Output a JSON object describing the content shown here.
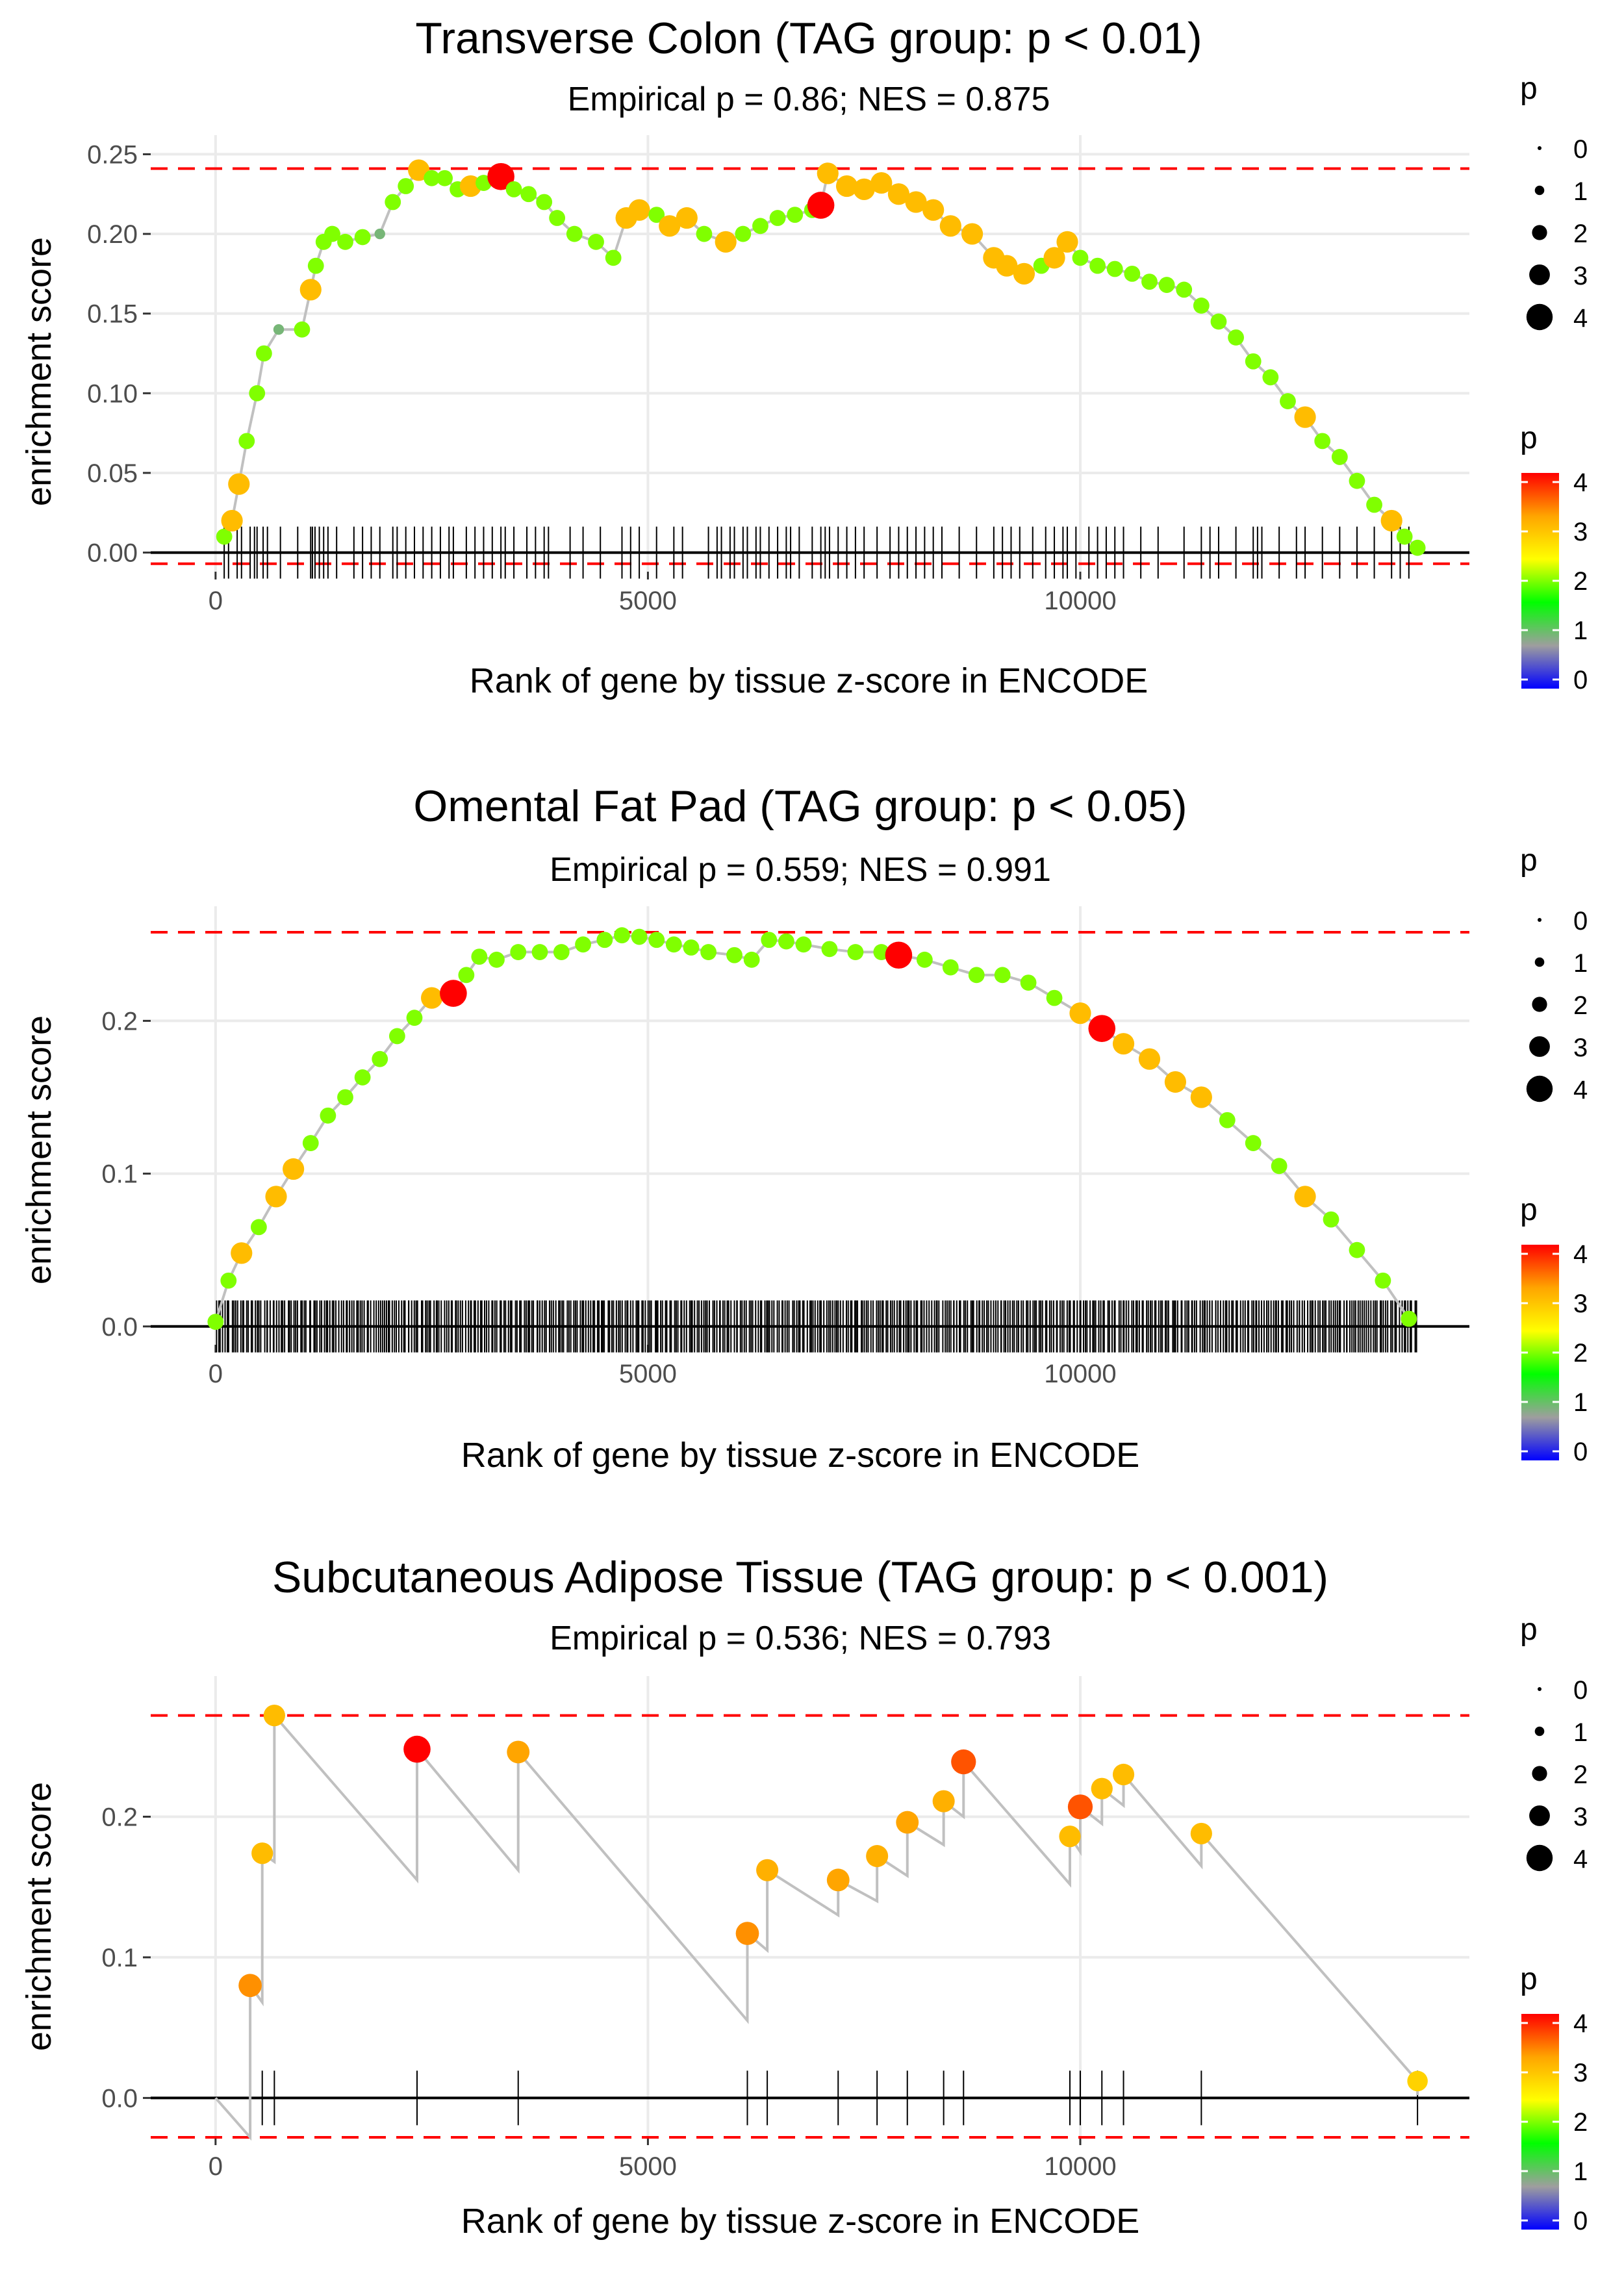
{
  "colors": {
    "grid": "#ebebeb",
    "line": "#c0c0c0",
    "axis": "#000000",
    "ref": "#ff0000",
    "tick_text": "#4d4d4d",
    "scale": [
      "#0000ff",
      "#9e9e9e",
      "#00ff00",
      "#ffff00",
      "#ffa500",
      "#ff0000"
    ]
  },
  "chart_data": [
    {
      "type": "line",
      "title": "Transverse Colon (TAG group: p < 0.01)",
      "subtitle": "Empirical p = 0.86; NES = 0.875",
      "xlabel": "Rank of gene by tissue z-score in ENCODE",
      "ylabel": "enrichment score",
      "xlim": [
        -750,
        14500
      ],
      "ylim": [
        -0.012,
        0.262
      ],
      "xticks": [
        0,
        5000,
        10000
      ],
      "xtick_labels": [
        "0",
        "5000",
        "10000"
      ],
      "yticks": [
        0,
        0.05,
        0.1,
        0.15,
        0.2,
        0.25
      ],
      "ytick_labels": [
        "0.00",
        "0.05",
        "0.10",
        "0.15",
        "0.20",
        "0.25"
      ],
      "ref_lines": [
        0.241,
        -0.007
      ],
      "grid": true,
      "legend_position": "right",
      "series": [
        {
          "name": "running enrichment score",
          "x": [
            100,
            190,
            270,
            360,
            480,
            560,
            730,
            1000,
            1100,
            1160,
            1250,
            1350,
            1500,
            1700,
            1900,
            2050,
            2200,
            2350,
            2500,
            2650,
            2800,
            2950,
            3100,
            3300,
            3450,
            3620,
            3800,
            3950,
            4150,
            4400,
            4600,
            4750,
            4900,
            5100,
            5250,
            5450,
            5650,
            5900,
            6100,
            6300,
            6500,
            6700,
            6900,
            7000,
            7080,
            7300,
            7500,
            7700,
            7900,
            8100,
            8300,
            8500,
            8750,
            9000,
            9150,
            9350,
            9550,
            9700,
            9850,
            10000,
            10200,
            10400,
            10600,
            10800,
            11000,
            11200,
            11400,
            11600,
            11800,
            12000,
            12200,
            12400,
            12600,
            12800,
            13000,
            13200,
            13400,
            13600,
            13750,
            13900
          ],
          "y": [
            0.01,
            0.02,
            0.043,
            0.07,
            0.1,
            0.125,
            0.14,
            0.14,
            0.165,
            0.18,
            0.195,
            0.2,
            0.195,
            0.198,
            0.2,
            0.22,
            0.23,
            0.24,
            0.235,
            0.235,
            0.228,
            0.23,
            0.232,
            0.236,
            0.228,
            0.225,
            0.22,
            0.21,
            0.2,
            0.195,
            0.185,
            0.21,
            0.215,
            0.212,
            0.205,
            0.21,
            0.2,
            0.195,
            0.2,
            0.205,
            0.21,
            0.212,
            0.215,
            0.218,
            0.238,
            0.23,
            0.228,
            0.232,
            0.225,
            0.22,
            0.215,
            0.205,
            0.2,
            0.185,
            0.18,
            0.175,
            0.18,
            0.185,
            0.195,
            0.185,
            0.18,
            0.178,
            0.175,
            0.17,
            0.168,
            0.165,
            0.155,
            0.145,
            0.135,
            0.12,
            0.11,
            0.095,
            0.085,
            0.07,
            0.06,
            0.045,
            0.03,
            0.02,
            0.01,
            0.003
          ],
          "p": [
            2,
            3,
            3,
            2,
            2,
            2,
            1,
            2,
            3,
            2,
            2,
            2,
            2,
            2,
            1,
            2,
            2,
            3,
            2,
            2,
            2,
            3,
            2,
            4,
            2,
            2,
            2,
            2,
            2,
            2,
            2,
            3,
            3,
            2,
            3,
            3,
            2,
            3,
            2,
            2,
            2,
            2,
            2,
            4,
            3,
            3,
            3,
            3,
            3,
            3,
            3,
            3,
            3,
            3,
            3,
            3,
            2,
            3,
            3,
            2,
            2,
            2,
            2,
            2,
            2,
            2,
            2,
            2,
            2,
            2,
            2,
            2,
            3,
            2,
            2,
            2,
            2,
            3,
            2,
            2
          ]
        }
      ],
      "gene_ranks": [
        100,
        150,
        250,
        300,
        400,
        450,
        480,
        550,
        600,
        750,
        950,
        1100,
        1120,
        1150,
        1200,
        1250,
        1300,
        1400,
        1600,
        1700,
        1800,
        1900,
        2050,
        2100,
        2200,
        2300,
        2400,
        2500,
        2600,
        2700,
        2750,
        2900,
        3000,
        3100,
        3200,
        3300,
        3350,
        3450,
        3600,
        3700,
        3800,
        3850,
        4100,
        4250,
        4450,
        4700,
        4800,
        4900,
        5100,
        5300,
        5400,
        5700,
        5800,
        5850,
        5950,
        6000,
        6100,
        6150,
        6250,
        6300,
        6400,
        6500,
        6600,
        6650,
        6750,
        6900,
        7000,
        7050,
        7100,
        7200,
        7300,
        7400,
        7500,
        7650,
        7800,
        7900,
        8000,
        8100,
        8200,
        8300,
        8400,
        8600,
        8800,
        9000,
        9100,
        9200,
        9300,
        9450,
        9600,
        9700,
        9800,
        9850,
        9950,
        10100,
        10200,
        10300,
        10400,
        10500,
        10700,
        10900,
        11200,
        11400,
        11500,
        11600,
        11800,
        12000,
        12050,
        12100,
        12300,
        12500,
        12600,
        12800,
        13000,
        13200,
        13400,
        13600,
        13700,
        13800
      ]
    },
    {
      "type": "line",
      "title": "Omental Fat Pad (TAG group: p < 0.05)",
      "subtitle": "Empirical p = 0.559; NES = 0.991",
      "xlabel": "Rank of gene by tissue z-score in ENCODE",
      "ylabel": "enrichment score",
      "xlim": [
        -750,
        14500
      ],
      "ylim": [
        -0.012,
        0.275
      ],
      "xticks": [
        0,
        5000,
        10000
      ],
      "xtick_labels": [
        "0",
        "5000",
        "10000"
      ],
      "yticks": [
        0,
        0.1,
        0.2
      ],
      "ytick_labels": [
        "0.0",
        "0.1",
        "0.2"
      ],
      "ref_lines": [
        0.258
      ],
      "grid": true,
      "legend_position": "right",
      "series": [
        {
          "name": "running enrichment score",
          "x": [
            0,
            150,
            300,
            500,
            700,
            900,
            1100,
            1300,
            1500,
            1700,
            1900,
            2100,
            2300,
            2500,
            2750,
            2900,
            3050,
            3250,
            3500,
            3750,
            4000,
            4250,
            4500,
            4700,
            4900,
            5100,
            5300,
            5500,
            5700,
            6000,
            6200,
            6400,
            6600,
            6800,
            7100,
            7400,
            7700,
            7900,
            8200,
            8500,
            8800,
            9100,
            9400,
            9700,
            10000,
            10250,
            10500,
            10800,
            11100,
            11400,
            11700,
            12000,
            12300,
            12600,
            12900,
            13200,
            13500,
            13800
          ],
          "y": [
            0.003,
            0.03,
            0.048,
            0.065,
            0.085,
            0.103,
            0.12,
            0.138,
            0.15,
            0.163,
            0.175,
            0.19,
            0.202,
            0.215,
            0.218,
            0.23,
            0.242,
            0.24,
            0.245,
            0.245,
            0.245,
            0.25,
            0.253,
            0.256,
            0.255,
            0.253,
            0.25,
            0.248,
            0.245,
            0.243,
            0.24,
            0.253,
            0.252,
            0.25,
            0.247,
            0.245,
            0.245,
            0.243,
            0.24,
            0.235,
            0.23,
            0.23,
            0.225,
            0.215,
            0.205,
            0.195,
            0.185,
            0.175,
            0.16,
            0.15,
            0.135,
            0.12,
            0.105,
            0.085,
            0.07,
            0.05,
            0.03,
            0.005
          ],
          "p": [
            2,
            2,
            3,
            2,
            3,
            3,
            2,
            2,
            2,
            2,
            2,
            2,
            2,
            3,
            4,
            2,
            2,
            2,
            2,
            2,
            2,
            2,
            2,
            2,
            2,
            2,
            2,
            2,
            2,
            2,
            2,
            2,
            2,
            2,
            2,
            2,
            2,
            4,
            2,
            2,
            2,
            2,
            2,
            2,
            3,
            4,
            3,
            3,
            3,
            3,
            2,
            2,
            2,
            3,
            2,
            2,
            2,
            2
          ]
        }
      ],
      "gene_ranks_count": 560,
      "gene_ranks_range": [
        0,
        13900
      ]
    },
    {
      "type": "line",
      "title": "Subcutaneous Adipose Tissue (TAG group: p < 0.001)",
      "subtitle": "Empirical p = 0.536; NES = 0.793",
      "xlabel": "Rank of gene by tissue z-score in ENCODE",
      "ylabel": "enrichment score",
      "xlim": [
        -750,
        14500
      ],
      "ylim": [
        -0.028,
        0.3
      ],
      "xticks": [
        0,
        5000,
        10000
      ],
      "xtick_labels": [
        "0",
        "5000",
        "10000"
      ],
      "yticks": [
        0,
        0.1,
        0.2
      ],
      "ytick_labels": [
        "0.0",
        "0.1",
        "0.2"
      ],
      "ref_lines": [
        0.272,
        -0.028
      ],
      "grid": true,
      "legend_position": "right",
      "series": [
        {
          "name": "running enrichment score",
          "x": [
            0,
            400,
            400,
            540,
            540,
            680,
            680,
            2330,
            2330,
            3500,
            3500,
            6150,
            6150,
            6380,
            6380,
            7200,
            7200,
            7650,
            7650,
            8000,
            8000,
            8420,
            8420,
            8650,
            8650,
            9880,
            9880,
            10000,
            10000,
            10250,
            10250,
            10500,
            10500,
            11400,
            11400,
            13900,
            13900
          ],
          "y": [
            0,
            -0.028,
            0.08,
            0.068,
            0.174,
            0.168,
            0.272,
            0.155,
            0.248,
            0.162,
            0.246,
            0.055,
            0.117,
            0.105,
            0.162,
            0.13,
            0.155,
            0.14,
            0.172,
            0.158,
            0.196,
            0.18,
            0.211,
            0.2,
            0.239,
            0.152,
            0.186,
            0.175,
            0.207,
            0.195,
            0.22,
            0.208,
            0.23,
            0.165,
            0.188,
            0.012,
            0.002
          ],
          "marker_x": [
            400,
            540,
            680,
            2330,
            3500,
            6150,
            6380,
            7200,
            7650,
            8000,
            8420,
            8650,
            9880,
            10000,
            10250,
            10500,
            11400,
            13900
          ],
          "marker_y": [
            0.08,
            0.174,
            0.272,
            0.248,
            0.246,
            0.117,
            0.162,
            0.155,
            0.172,
            0.196,
            0.211,
            0.239,
            0.186,
            0.207,
            0.22,
            0.23,
            0.188,
            0.012
          ],
          "p": [
            3.3,
            3.0,
            3.0,
            4.0,
            3.2,
            3.3,
            3.1,
            3.2,
            3.1,
            3.2,
            3.1,
            3.6,
            3.0,
            3.6,
            3.0,
            3.0,
            3.0,
            2.8
          ]
        }
      ],
      "gene_ranks": [
        400,
        540,
        680,
        2330,
        3500,
        6150,
        6380,
        7200,
        7650,
        8000,
        8420,
        8650,
        9880,
        10000,
        10250,
        10500,
        11400,
        13900
      ]
    }
  ],
  "legends": [
    {
      "size_title": "p",
      "size_values": [
        "0",
        "1",
        "2",
        "3",
        "4"
      ],
      "color_title": "p",
      "color_values": [
        "4",
        "3",
        "2",
        "1",
        "0"
      ]
    },
    {
      "size_title": "p",
      "size_values": [
        "0",
        "1",
        "2",
        "3",
        "4"
      ],
      "color_title": "p",
      "color_values": [
        "4",
        "3",
        "2",
        "1",
        "0"
      ]
    },
    {
      "size_title": "p",
      "size_values": [
        "0",
        "1",
        "2",
        "3",
        "4"
      ],
      "color_title": "p",
      "color_values": [
        "4",
        "3",
        "2",
        "1",
        "0"
      ]
    }
  ]
}
